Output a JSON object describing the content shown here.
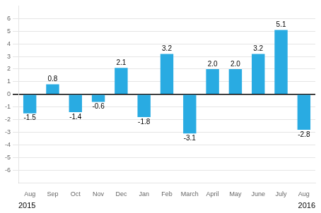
{
  "chart_data": {
    "type": "bar",
    "categories": [
      "Aug",
      "Sep",
      "Oct",
      "Nov",
      "Dec",
      "Jan",
      "Feb",
      "March",
      "April",
      "May",
      "June",
      "July",
      "Aug"
    ],
    "values": [
      -1.5,
      0.8,
      -1.4,
      -0.6,
      2.1,
      -1.8,
      3.2,
      -3.1,
      2.0,
      2.0,
      3.2,
      5.1,
      -2.8
    ],
    "value_labels": [
      "-1.5",
      "0.8",
      "-1.4",
      "-0.6",
      "2.1",
      "-1.8",
      "3.2",
      "-3.1",
      "2.0",
      "2.0",
      "3.2",
      "5.1",
      "-2.8"
    ],
    "data_labels": true,
    "color": "#29ABE2",
    "ylim": [
      -7,
      7
    ],
    "yticks": [
      -6,
      -5,
      -4,
      -3,
      -2,
      -1,
      0,
      1,
      2,
      3,
      4,
      5,
      6
    ],
    "grid": true,
    "annotations": [
      "2015",
      "2016"
    ]
  }
}
